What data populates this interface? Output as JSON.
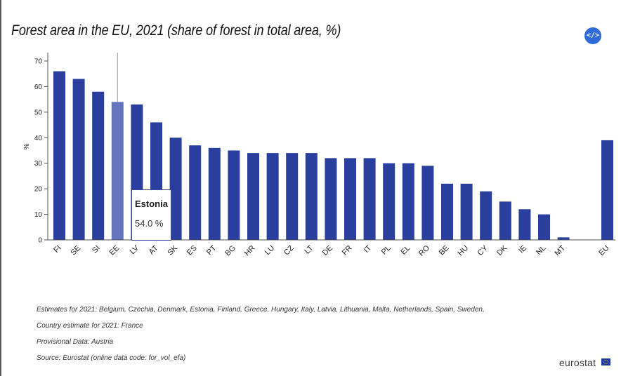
{
  "title": "Forest area in the EU, 2021 (share of forest in total area, %)",
  "embed_button_label": "</>",
  "chart_data": {
    "type": "bar",
    "title": "Forest area in the EU, 2021 (share of forest in total area, %)",
    "xlabel": "",
    "ylabel": "%",
    "ylim": [
      0,
      70
    ],
    "yticks": [
      0,
      10,
      20,
      30,
      40,
      50,
      60,
      70
    ],
    "categories": [
      "FI",
      "SE",
      "SI",
      "EE",
      "LV",
      "AT",
      "SK",
      "ES",
      "PT",
      "BG",
      "HR",
      "LU",
      "CZ",
      "LT",
      "DE",
      "FR",
      "IT",
      "PL",
      "EL",
      "RO",
      "BE",
      "HU",
      "CY",
      "DK",
      "IE",
      "NL",
      "MT",
      "EU"
    ],
    "values": [
      66,
      63,
      58,
      54,
      53,
      46,
      40,
      37,
      36,
      35,
      34,
      34,
      34,
      34,
      32,
      32,
      32,
      30,
      30,
      29,
      22,
      22,
      19,
      15,
      12,
      10,
      1,
      39
    ],
    "highlighted": "EE",
    "bar_color": "#2a3e9e",
    "highlight_color": "#6674c0"
  },
  "tooltip": {
    "name": "Estonia",
    "value": "54.0 %"
  },
  "notes": [
    "Estimates for 2021: Belgium, Czechia, Denmark, Estonia, Finland, Greece. Hungary, Italy, Latvia, Lithuania, Malta, Netherlands, Spain, Sweden,",
    "Country estimate for 2021: France",
    "Provisional Data: Austria",
    "Source: Eurostat (online data code: for_vol_efa)"
  ],
  "logo_text": "eurostat"
}
